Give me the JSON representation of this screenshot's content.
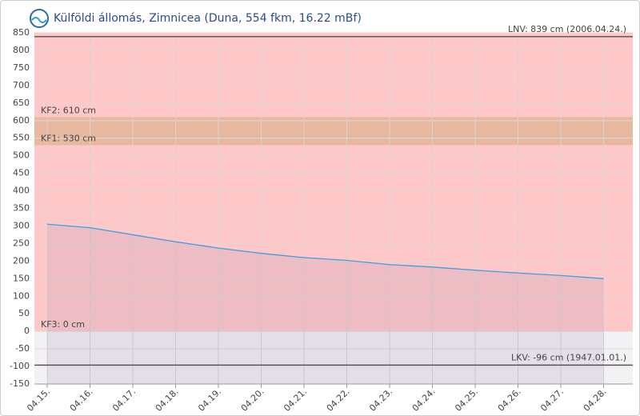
{
  "chart_data": {
    "type": "line",
    "title": "Külföldi állomás, Zimnicea (Duna, 554 fkm, 16.22 mBf)",
    "categories": [
      "04.15.",
      "04.16.",
      "04.17.",
      "04.18.",
      "04.19.",
      "04.20.",
      "04.21.",
      "04.22.",
      "04.23.",
      "04.24.",
      "04.25.",
      "04.26.",
      "04.27.",
      "04.28."
    ],
    "values": [
      305,
      295,
      275,
      255,
      237,
      222,
      210,
      202,
      190,
      183,
      174,
      166,
      159,
      150
    ],
    "color": "#3a9ee8",
    "ylim": [
      -150,
      850
    ],
    "yticks": [
      -150,
      -100,
      -50,
      0,
      50,
      100,
      150,
      200,
      250,
      300,
      350,
      400,
      450,
      500,
      550,
      600,
      650,
      700,
      750,
      800,
      850
    ],
    "grid": true,
    "levels": [
      {
        "label": "KF2: 610 cm",
        "value": 610
      },
      {
        "label": "KF1: 530 cm",
        "value": 530
      },
      {
        "label": "KF3: 0 cm",
        "value": 0
      }
    ],
    "reference_lines": [
      {
        "label": "LNV: 839 cm (2006.04.24.)",
        "value": 839
      },
      {
        "label": "LKV: -96 cm (1947.01.01.)",
        "value": -96
      }
    ]
  }
}
